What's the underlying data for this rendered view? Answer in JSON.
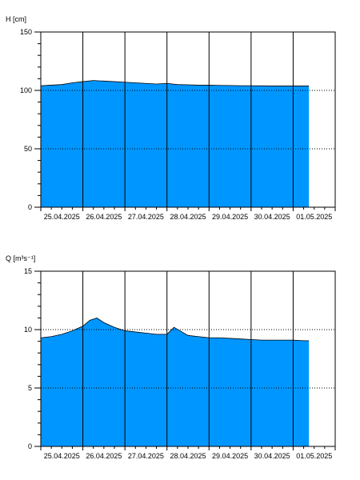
{
  "chart_data": [
    {
      "type": "area",
      "ylabel": "H [cm]",
      "ylim": [
        0,
        150
      ],
      "yticks": [
        0,
        50,
        100,
        150
      ],
      "xlim": [
        "2025-04-25T00:00",
        "2025-05-02T00:00"
      ],
      "day_labels": [
        "25.04.2025",
        "26.04.2025",
        "27.04.2025",
        "28.04.2025",
        "29.04.2025",
        "30.04.2025",
        "01.05.2025"
      ],
      "grid": "vertical lines at midnight, dotted horizontal lines at major y ticks",
      "fill_color": "#0096ff",
      "series": [
        {
          "x": [
            "2025-04-25T00:00",
            "2025-04-25T06:00",
            "2025-04-25T12:00",
            "2025-04-25T18:00",
            "2025-04-26T00:00",
            "2025-04-26T06:00",
            "2025-04-26T12:00",
            "2025-04-26T18:00",
            "2025-04-27T00:00",
            "2025-04-27T06:00",
            "2025-04-27T12:00",
            "2025-04-27T18:00",
            "2025-04-28T00:00",
            "2025-04-28T06:00",
            "2025-04-28T12:00",
            "2025-04-28T18:00",
            "2025-04-29T00:00",
            "2025-04-29T06:00",
            "2025-04-29T12:00",
            "2025-04-29T18:00",
            "2025-04-30T00:00",
            "2025-04-30T06:00",
            "2025-04-30T12:00",
            "2025-04-30T18:00",
            "2025-05-01T00:00",
            "2025-05-01T06:00",
            "2025-05-01T09:00"
          ],
          "values": [
            104,
            104.5,
            105,
            106.5,
            107.5,
            108.5,
            108,
            107.5,
            107,
            106.5,
            106,
            105.5,
            106,
            105,
            104.8,
            104.5,
            104.5,
            104.3,
            104.2,
            104,
            104,
            103.9,
            103.8,
            103.8,
            103.8,
            103.8,
            103.8
          ]
        }
      ]
    },
    {
      "type": "area",
      "ylabel": "Q [m³s⁻¹]",
      "ylim": [
        0,
        15
      ],
      "yticks": [
        0,
        5,
        10,
        15
      ],
      "xlim": [
        "2025-04-25T00:00",
        "2025-05-02T00:00"
      ],
      "day_labels": [
        "25.04.2025",
        "26.04.2025",
        "27.04.2025",
        "28.04.2025",
        "29.04.2025",
        "30.04.2025",
        "01.05.2025"
      ],
      "grid": "vertical lines at midnight, dotted horizontal lines at major y ticks",
      "fill_color": "#0096ff",
      "series": [
        {
          "x": [
            "2025-04-25T00:00",
            "2025-04-25T06:00",
            "2025-04-25T12:00",
            "2025-04-25T18:00",
            "2025-04-26T00:00",
            "2025-04-26T04:00",
            "2025-04-26T08:00",
            "2025-04-26T12:00",
            "2025-04-26T18:00",
            "2025-04-27T00:00",
            "2025-04-27T06:00",
            "2025-04-27T12:00",
            "2025-04-27T18:00",
            "2025-04-28T00:00",
            "2025-04-28T04:00",
            "2025-04-28T12:00",
            "2025-04-28T18:00",
            "2025-04-29T00:00",
            "2025-04-29T06:00",
            "2025-04-29T12:00",
            "2025-04-29T18:00",
            "2025-04-30T00:00",
            "2025-04-30T06:00",
            "2025-04-30T12:00",
            "2025-04-30T18:00",
            "2025-05-01T00:00",
            "2025-05-01T06:00",
            "2025-05-01T09:00"
          ],
          "values": [
            9.3,
            9.4,
            9.6,
            9.9,
            10.3,
            10.8,
            11.0,
            10.6,
            10.2,
            9.9,
            9.8,
            9.7,
            9.6,
            9.6,
            10.2,
            9.5,
            9.4,
            9.3,
            9.3,
            9.25,
            9.2,
            9.15,
            9.1,
            9.1,
            9.1,
            9.1,
            9.05,
            9.05
          ]
        }
      ]
    }
  ]
}
